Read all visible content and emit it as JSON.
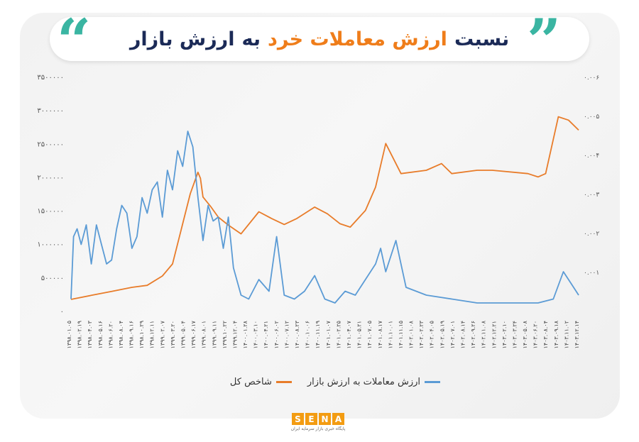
{
  "header": {
    "title_part1": "نسبت",
    "title_part2": "ارزش معاملات خرد",
    "title_part3": "به",
    "title_part4": "ارزش بازار",
    "quote_left_glyph": "“",
    "quote_right_glyph": "”"
  },
  "legend": {
    "series_blue_label": "ارزش معاملات به ارزش بازار",
    "series_orange_label": "شاخص کل"
  },
  "logo": {
    "letters": [
      "S",
      "E",
      "N",
      "A"
    ],
    "subtitle": "پایگاه خبری بازار سرمایه ایران"
  },
  "colors": {
    "orange": "#e87c2a",
    "blue": "#5b9bd5",
    "title_navy": "#1b2a57",
    "title_orange": "#ef7d1a",
    "quote_teal": "#3ab5a2"
  },
  "chart_data": {
    "type": "line",
    "left_axis": {
      "ticks": [
        0,
        500000,
        1000000,
        1500000,
        2000000,
        2500000,
        3000000,
        3500000
      ],
      "tick_labels": [
        "۰",
        "۵۰۰۰۰۰",
        "۱۰۰۰۰۰۰",
        "۱۵۰۰۰۰۰",
        "۲۰۰۰۰۰۰",
        "۲۵۰۰۰۰۰",
        "۳۰۰۰۰۰۰",
        "۳۵۰۰۰۰۰"
      ],
      "ylim": [
        0,
        3500000
      ]
    },
    "right_axis": {
      "ticks": [
        0.001,
        0.002,
        0.003,
        0.004,
        0.005,
        0.006
      ],
      "tick_labels": [
        "۰.۰۰۱",
        "۰.۰۰۲",
        "۰.۰۰۳",
        "۰.۰۰۴",
        "۰.۰۰۵",
        "۰.۰۰۶"
      ],
      "ylim": [
        0,
        0.006
      ]
    },
    "x_tick_labels": [
      "۱۳۹۸.۰۱.۰۵",
      "۱۳۹۸.۰۲.۱۹",
      "۱۳۹۸.۰۴.۰۳",
      "۱۳۹۸.۰۵.۱۶",
      "۱۳۹۸.۰۶.۲۰",
      "۱۳۹۸.۰۸.۰۴",
      "۱۳۹۸.۰۹.۱۶",
      "۱۳۹۸.۱۰.۲۹",
      "۱۳۹۸.۱۲.۱۱",
      "۱۳۹۹.۰۲.۰۷",
      "۱۳۹۹.۰۳.۲۰",
      "۱۳۹۹.۰۵.۰۴",
      "۱۳۹۹.۰۶.۱۷",
      "۱۳۹۹.۰۸.۰۱",
      "۱۳۹۹.۰۹.۱۱",
      "۱۳۹۹.۱۰.۲۲",
      "۱۳۹۹.۱۲.۰۴",
      "۱۴۰۰.۰۱.۲۸",
      "۱۴۰۰.۰۳.۱۰",
      "۱۴۰۰.۰۴.۲۱",
      "۱۴۰۰.۰۶.۰۲",
      "۱۴۰۰.۰۷.۱۲",
      "۱۴۰۰.۰۸.۲۳",
      "۱۴۰۰.۱۰.۰۶",
      "۱۴۰۰.۱۱.۱۹",
      "۱۴۰۱.۰۱.۰۷",
      "۱۴۰۱.۰۲.۲۵",
      "۱۴۰۱.۰۴.۰۷",
      "۱۴۰۱.۰۵.۲۱",
      "۱۴۰۱.۰۷.۰۵",
      "۱۴۰۱.۰۸.۱۷",
      "۱۴۰۱.۱۰.۰۱",
      "۱۴۰۱.۱۱.۱۵",
      "۱۴۰۲.۰۱.۰۸",
      "۱۴۰۲.۰۲.۲۳",
      "۱۴۰۲.۰۴.۰۵",
      "۱۴۰۲.۰۵.۱۹",
      "۱۴۰۲.۰۷.۰۱",
      "۱۴۰۲.۰۸.۱۴",
      "۱۴۰۲.۰۹.۲۶",
      "۱۴۰۲.۱۱.۰۸",
      "۱۴۰۲.۱۲.۲۱",
      "۱۴۰۳.۰۲.۱۰",
      "۱۴۰۳.۰۳.۲۴",
      "۱۴۰۳.۰۵.۰۸",
      "۱۴۰۳.۰۶.۲۰",
      "۱۴۰۳.۰۸.۰۴",
      "۱۴۰۳.۰۹.۱۸",
      "۱۴۰۳.۱۱.۰۲",
      "۱۴۰۳.۱۲.۱۴"
    ],
    "series": [
      {
        "name": "شاخص کل",
        "axis": "left",
        "color": "#e87c2a",
        "x": [
          0,
          0.04,
          0.08,
          0.12,
          0.15,
          0.18,
          0.2,
          0.22,
          0.235,
          0.25,
          0.255,
          0.26,
          0.275,
          0.29,
          0.31,
          0.335,
          0.37,
          0.395,
          0.42,
          0.445,
          0.48,
          0.505,
          0.53,
          0.55,
          0.58,
          0.6,
          0.62,
          0.65,
          0.7,
          0.73,
          0.75,
          0.8,
          0.83,
          0.9,
          0.92,
          0.935,
          0.96,
          0.98,
          1.0
        ],
        "values": [
          170000,
          230000,
          290000,
          350000,
          380000,
          520000,
          700000,
          1300000,
          1750000,
          2070000,
          1980000,
          1700000,
          1560000,
          1400000,
          1280000,
          1150000,
          1480000,
          1380000,
          1290000,
          1380000,
          1550000,
          1450000,
          1300000,
          1250000,
          1500000,
          1850000,
          2500000,
          2050000,
          2100000,
          2200000,
          2050000,
          2100000,
          2100000,
          2050000,
          2000000,
          2050000,
          2900000,
          2850000,
          2700000
        ]
      },
      {
        "name": "ارزش معاملات به ارزش بازار",
        "axis": "right",
        "color": "#5b9bd5",
        "x": [
          0,
          0.005,
          0.012,
          0.02,
          0.03,
          0.04,
          0.05,
          0.06,
          0.07,
          0.08,
          0.09,
          0.1,
          0.11,
          0.12,
          0.13,
          0.14,
          0.15,
          0.16,
          0.17,
          0.18,
          0.19,
          0.2,
          0.21,
          0.22,
          0.23,
          0.24,
          0.25,
          0.26,
          0.27,
          0.28,
          0.29,
          0.3,
          0.31,
          0.32,
          0.335,
          0.35,
          0.37,
          0.39,
          0.405,
          0.42,
          0.44,
          0.46,
          0.48,
          0.5,
          0.52,
          0.54,
          0.56,
          0.58,
          0.6,
          0.61,
          0.62,
          0.64,
          0.66,
          0.7,
          0.75,
          0.8,
          0.85,
          0.9,
          0.92,
          0.95,
          0.97,
          0.985,
          1.0
        ],
        "values": [
          0.0003,
          0.0019,
          0.0021,
          0.0017,
          0.0022,
          0.0012,
          0.0022,
          0.0017,
          0.0012,
          0.0013,
          0.0021,
          0.0027,
          0.0025,
          0.0016,
          0.0019,
          0.0029,
          0.0025,
          0.0031,
          0.0033,
          0.0024,
          0.0036,
          0.0031,
          0.0041,
          0.0037,
          0.0046,
          0.0042,
          0.0029,
          0.0018,
          0.0027,
          0.0023,
          0.0024,
          0.0016,
          0.0024,
          0.0011,
          0.0004,
          0.0003,
          0.0008,
          0.0005,
          0.0019,
          0.0004,
          0.0003,
          0.0005,
          0.0009,
          0.0003,
          0.0002,
          0.0005,
          0.0004,
          0.0008,
          0.0012,
          0.0016,
          0.001,
          0.0018,
          0.0006,
          0.0004,
          0.0003,
          0.0002,
          0.0002,
          0.0002,
          0.0002,
          0.0003,
          0.001,
          0.0007,
          0.0004
        ]
      }
    ],
    "grid": false,
    "legend_position": "bottom"
  }
}
